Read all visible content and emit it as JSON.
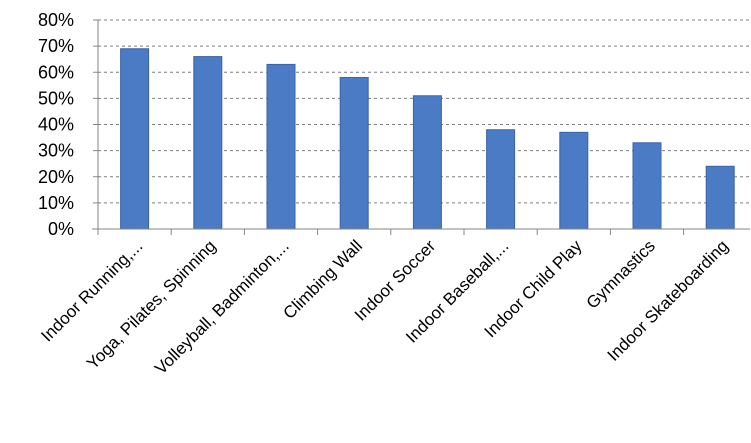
{
  "chart_data": {
    "type": "bar",
    "title": "",
    "xlabel": "",
    "ylabel": "",
    "categories": [
      "Indoor Running,...",
      "Yoga, Pilates, Spinning",
      "Volleyball, Badminton,...",
      "Climbing Wall",
      "Indoor Soccer",
      "Indoor Baseball,...",
      "Indoor Child Play",
      "Gymnastics",
      "Indoor Skateboarding"
    ],
    "values": [
      69,
      66,
      63,
      58,
      51,
      38,
      37,
      33,
      24
    ],
    "value_unit": "%",
    "ylim": [
      0,
      80
    ],
    "yticks": [
      "0%",
      "10%",
      "20%",
      "30%",
      "40%",
      "50%",
      "60%",
      "70%",
      "80%"
    ],
    "grid": true,
    "grid_style": "dashed",
    "legend": "none",
    "bar_color": "#4a7bc4",
    "bar_edge_color": "#3a65a6"
  }
}
